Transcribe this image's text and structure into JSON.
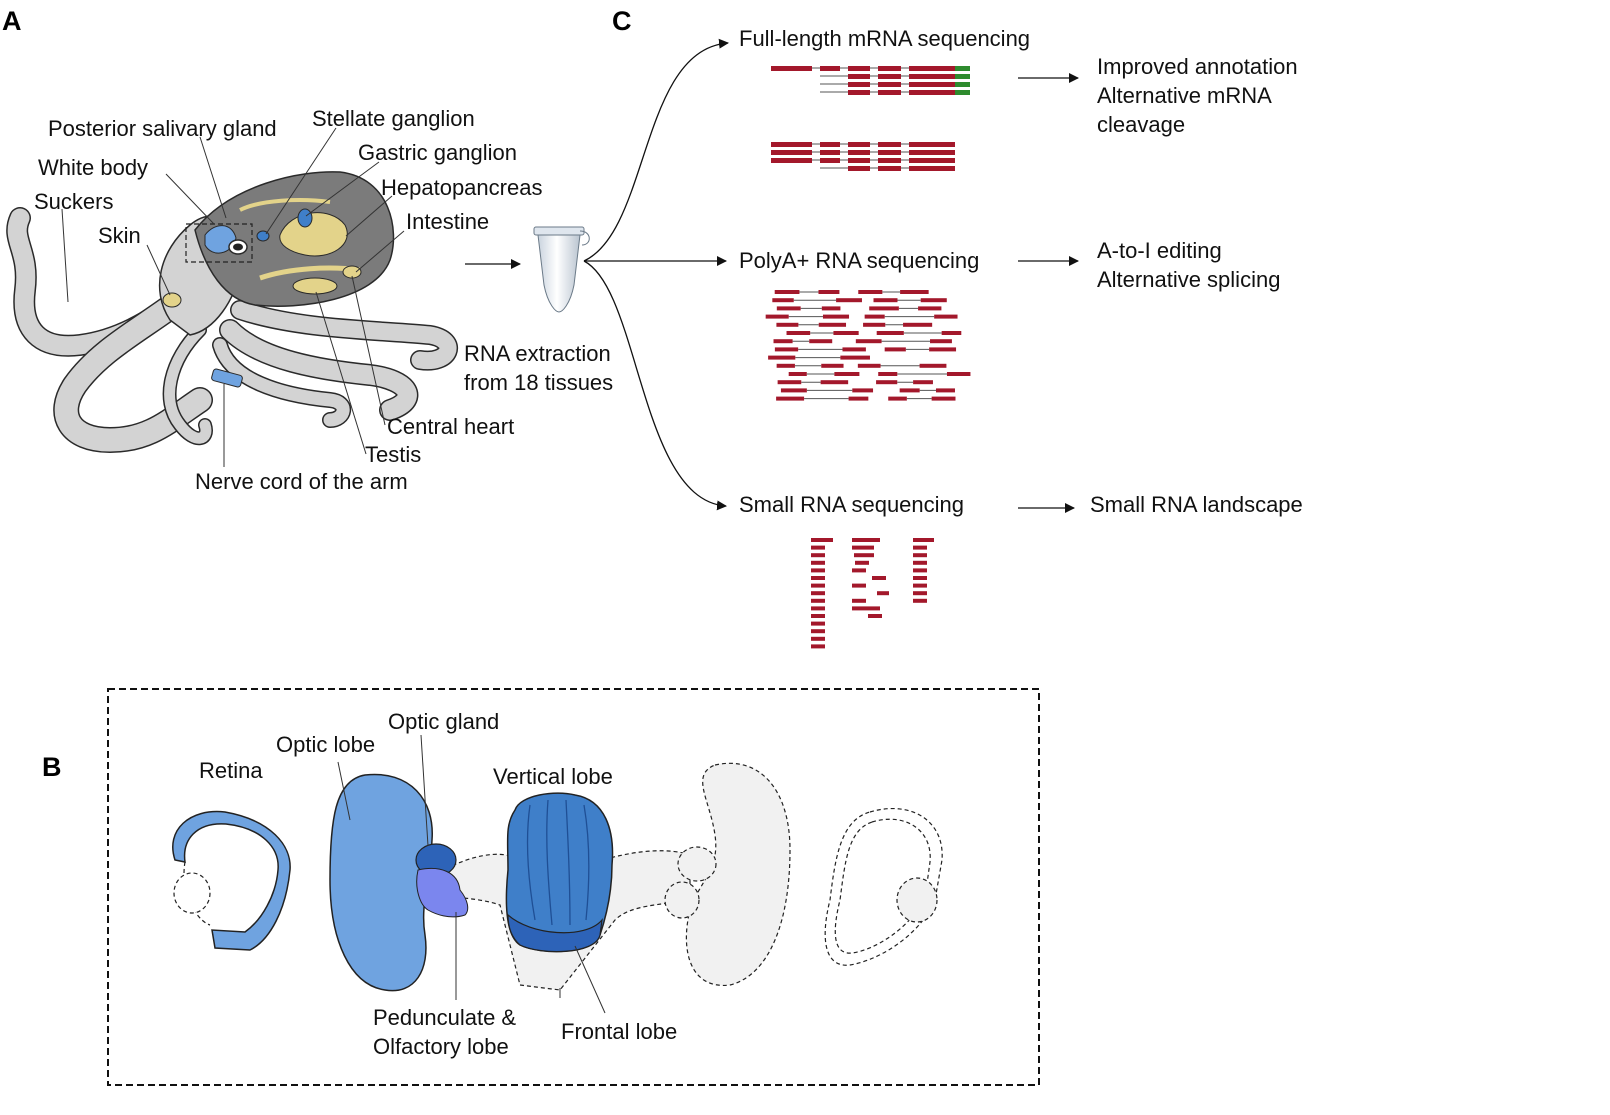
{
  "panels": {
    "a": "A",
    "b": "B",
    "c": "C"
  },
  "panel_a": {
    "labels": {
      "posterior_salivary_gland": "Posterior salivary gland",
      "stellate_ganglion": "Stellate ganglion",
      "white_body": "White body",
      "gastric_ganglion": "Gastric ganglion",
      "suckers": "Suckers",
      "hepatopancreas": "Hepatopancreas",
      "skin": "Skin",
      "intestine": "Intestine",
      "central_heart": "Central heart",
      "testis": "Testis",
      "nerve_cord": "Nerve cord of the arm"
    },
    "extraction": {
      "line1": "RNA extraction",
      "line2": "from 18 tissues"
    }
  },
  "panel_b": {
    "labels": {
      "retina": "Retina",
      "optic_lobe": "Optic lobe",
      "optic_gland": "Optic gland",
      "vertical_lobe": "Vertical lobe",
      "pedunculate_1": "Pedunculate &",
      "pedunculate_2": "Olfactory lobe",
      "frontal_lobe": "Frontal lobe"
    }
  },
  "panel_c": {
    "full_length": {
      "title": "Full-length mRNA sequencing",
      "outcomes": [
        "Improved annotation",
        "Alternative mRNA",
        "cleavage"
      ]
    },
    "polya": {
      "title": "PolyA+ RNA sequencing",
      "outcomes": [
        "A-to-I editing",
        "Alternative splicing"
      ]
    },
    "small": {
      "title": "Small RNA sequencing",
      "outcomes": [
        "Small RNA landscape"
      ]
    }
  },
  "colors": {
    "read": "#a3182b",
    "read_tail": "#2e8b2e",
    "octopus_body": "#d3d3d3",
    "mantle": "#7b7b7b",
    "organ_yellow": "#e3d38a",
    "brain_blue_light": "#6fa3e0",
    "brain_blue_mid": "#3f7fc9",
    "brain_blue_dark": "#2d63b8",
    "brain_purple": "#7b86ee",
    "ghost_gray": "#f1f1f1"
  }
}
